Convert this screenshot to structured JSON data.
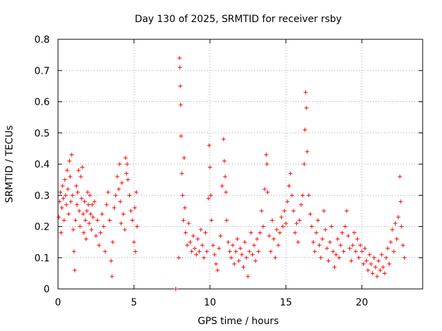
{
  "chart_data": {
    "type": "scatter",
    "title": "Day 130 of 2025, SRMTID for receiver rsby",
    "xlabel": "GPS time / hours",
    "ylabel": "SRMTID / TECUs",
    "xlim": [
      0,
      24
    ],
    "ylim": [
      0,
      0.8
    ],
    "xticks": [
      0,
      5,
      10,
      15,
      20
    ],
    "xtick_labels": [
      "0",
      "5",
      "10",
      "15",
      "20"
    ],
    "yticks": [
      0,
      0.1,
      0.2,
      0.3,
      0.4,
      0.5,
      0.6,
      0.7,
      0.8
    ],
    "ytick_labels": [
      "0",
      "0.1",
      "0.2",
      "0.3",
      "0.4",
      "0.5",
      "0.6",
      "0.7",
      "0.8"
    ],
    "grid": true,
    "marker": "+",
    "color": "#ff0000",
    "series": [
      {
        "name": "SRMTID",
        "points": [
          [
            0.05,
            0.23
          ],
          [
            0.1,
            0.28
          ],
          [
            0.15,
            0.31
          ],
          [
            0.2,
            0.18
          ],
          [
            0.25,
            0.26
          ],
          [
            0.3,
            0.33
          ],
          [
            0.35,
            0.29
          ],
          [
            0.4,
            0.22
          ],
          [
            0.45,
            0.35
          ],
          [
            0.5,
            0.3
          ],
          [
            0.55,
            0.27
          ],
          [
            0.6,
            0.38
          ],
          [
            0.65,
            0.32
          ],
          [
            0.7,
            0.24
          ],
          [
            0.75,
            0.41
          ],
          [
            0.8,
            0.36
          ],
          [
            0.85,
            0.28
          ],
          [
            0.9,
            0.43
          ],
          [
            0.95,
            0.3
          ],
          [
            1.0,
            0.19
          ],
          [
            1.05,
            0.12
          ],
          [
            1.1,
            0.06
          ],
          [
            1.15,
            0.22
          ],
          [
            1.2,
            0.33
          ],
          [
            1.25,
            0.27
          ],
          [
            1.3,
            0.31
          ],
          [
            1.35,
            0.38
          ],
          [
            1.4,
            0.25
          ],
          [
            1.45,
            0.2
          ],
          [
            1.5,
            0.36
          ],
          [
            1.55,
            0.29
          ],
          [
            1.6,
            0.39
          ],
          [
            1.65,
            0.24
          ],
          [
            1.7,
            0.18
          ],
          [
            1.75,
            0.28
          ],
          [
            1.8,
            0.22
          ],
          [
            1.85,
            0.16
          ],
          [
            1.9,
            0.25
          ],
          [
            1.95,
            0.31
          ],
          [
            2.0,
            0.27
          ],
          [
            2.05,
            0.21
          ],
          [
            2.1,
            0.3
          ],
          [
            2.15,
            0.24
          ],
          [
            2.2,
            0.19
          ],
          [
            2.25,
            0.27
          ],
          [
            2.3,
            0.23
          ],
          [
            2.4,
            0.28
          ],
          [
            2.5,
            0.17
          ],
          [
            2.6,
            0.22
          ],
          [
            2.7,
            0.14
          ],
          [
            2.8,
            0.18
          ],
          [
            2.9,
            0.24
          ],
          [
            3.0,
            0.2
          ],
          [
            3.1,
            0.12
          ],
          [
            3.2,
            0.27
          ],
          [
            3.3,
            0.31
          ],
          [
            3.4,
            0.22
          ],
          [
            3.5,
            0.09
          ],
          [
            3.55,
            0.04
          ],
          [
            3.6,
            0.15
          ],
          [
            3.7,
            0.26
          ],
          [
            3.8,
            0.3
          ],
          [
            3.9,
            0.36
          ],
          [
            4.0,
            0.32
          ],
          [
            4.05,
            0.4
          ],
          [
            4.1,
            0.28
          ],
          [
            4.15,
            0.21
          ],
          [
            4.2,
            0.34
          ],
          [
            4.3,
            0.24
          ],
          [
            4.4,
            0.19
          ],
          [
            4.45,
            0.42
          ],
          [
            4.5,
            0.37
          ],
          [
            4.55,
            0.4
          ],
          [
            4.6,
            0.35
          ],
          [
            4.7,
            0.3
          ],
          [
            4.8,
            0.25
          ],
          [
            4.9,
            0.22
          ],
          [
            5.0,
            0.15
          ],
          [
            5.05,
            0.26
          ],
          [
            5.1,
            0.12
          ],
          [
            5.15,
            0.31
          ],
          [
            5.2,
            0.2
          ],
          [
            7.75,
            0.0
          ],
          [
            7.95,
            0.1
          ],
          [
            8.0,
            0.74
          ],
          [
            8.02,
            0.71
          ],
          [
            8.05,
            0.65
          ],
          [
            8.08,
            0.59
          ],
          [
            8.1,
            0.49
          ],
          [
            8.15,
            0.37
          ],
          [
            8.2,
            0.3
          ],
          [
            8.25,
            0.22
          ],
          [
            8.3,
            0.42
          ],
          [
            8.35,
            0.26
          ],
          [
            8.4,
            0.18
          ],
          [
            8.5,
            0.14
          ],
          [
            8.6,
            0.21
          ],
          [
            8.7,
            0.15
          ],
          [
            8.8,
            0.12
          ],
          [
            8.9,
            0.17
          ],
          [
            9.0,
            0.13
          ],
          [
            9.1,
            0.11
          ],
          [
            9.2,
            0.16
          ],
          [
            9.3,
            0.12
          ],
          [
            9.4,
            0.19
          ],
          [
            9.5,
            0.14
          ],
          [
            9.6,
            0.1
          ],
          [
            9.7,
            0.18
          ],
          [
            9.8,
            0.12
          ],
          [
            9.9,
            0.29
          ],
          [
            9.95,
            0.46
          ],
          [
            10.0,
            0.39
          ],
          [
            10.05,
            0.3
          ],
          [
            10.1,
            0.22
          ],
          [
            10.2,
            0.14
          ],
          [
            10.3,
            0.11
          ],
          [
            10.4,
            0.08
          ],
          [
            10.5,
            0.06
          ],
          [
            10.6,
            0.13
          ],
          [
            10.7,
            0.17
          ],
          [
            10.8,
            0.33
          ],
          [
            10.9,
            0.48
          ],
          [
            10.95,
            0.41
          ],
          [
            11.0,
            0.36
          ],
          [
            11.05,
            0.31
          ],
          [
            11.1,
            0.22
          ],
          [
            11.2,
            0.15
          ],
          [
            11.3,
            0.12
          ],
          [
            11.4,
            0.1
          ],
          [
            11.5,
            0.14
          ],
          [
            11.6,
            0.08
          ],
          [
            11.7,
            0.12
          ],
          [
            11.8,
            0.16
          ],
          [
            11.9,
            0.09
          ],
          [
            12.0,
            0.13
          ],
          [
            12.1,
            0.11
          ],
          [
            12.2,
            0.07
          ],
          [
            12.3,
            0.15
          ],
          [
            12.4,
            0.1
          ],
          [
            12.5,
            0.04
          ],
          [
            12.6,
            0.12
          ],
          [
            12.7,
            0.18
          ],
          [
            12.8,
            0.11
          ],
          [
            12.9,
            0.14
          ],
          [
            13.0,
            0.09
          ],
          [
            13.1,
            0.16
          ],
          [
            13.2,
            0.12
          ],
          [
            13.3,
            0.18
          ],
          [
            13.4,
            0.25
          ],
          [
            13.5,
            0.2
          ],
          [
            13.6,
            0.32
          ],
          [
            13.7,
            0.43
          ],
          [
            13.75,
            0.4
          ],
          [
            13.8,
            0.31
          ],
          [
            13.9,
            0.17
          ],
          [
            14.0,
            0.12
          ],
          [
            14.1,
            0.22
          ],
          [
            14.2,
            0.16
          ],
          [
            14.3,
            0.1
          ],
          [
            14.4,
            0.19
          ],
          [
            14.5,
            0.14
          ],
          [
            14.6,
            0.18
          ],
          [
            14.7,
            0.23
          ],
          [
            14.8,
            0.2
          ],
          [
            14.9,
            0.25
          ],
          [
            15.0,
            0.21
          ],
          [
            15.1,
            0.28
          ],
          [
            15.2,
            0.33
          ],
          [
            15.3,
            0.37
          ],
          [
            15.4,
            0.3
          ],
          [
            15.5,
            0.25
          ],
          [
            15.6,
            0.18
          ],
          [
            15.7,
            0.21
          ],
          [
            15.8,
            0.15
          ],
          [
            15.9,
            0.22
          ],
          [
            16.0,
            0.27
          ],
          [
            16.1,
            0.3
          ],
          [
            16.2,
            0.4
          ],
          [
            16.25,
            0.51
          ],
          [
            16.3,
            0.63
          ],
          [
            16.35,
            0.58
          ],
          [
            16.4,
            0.44
          ],
          [
            16.5,
            0.3
          ],
          [
            16.6,
            0.24
          ],
          [
            16.7,
            0.2
          ],
          [
            16.8,
            0.15
          ],
          [
            16.9,
            0.12
          ],
          [
            17.0,
            0.18
          ],
          [
            17.1,
            0.22
          ],
          [
            17.2,
            0.14
          ],
          [
            17.3,
            0.1
          ],
          [
            17.4,
            0.16
          ],
          [
            17.5,
            0.25
          ],
          [
            17.6,
            0.19
          ],
          [
            17.7,
            0.13
          ],
          [
            17.8,
            0.09
          ],
          [
            17.9,
            0.15
          ],
          [
            18.0,
            0.2
          ],
          [
            18.1,
            0.12
          ],
          [
            18.2,
            0.07
          ],
          [
            18.3,
            0.11
          ],
          [
            18.4,
            0.16
          ],
          [
            18.5,
            0.1
          ],
          [
            18.6,
            0.14
          ],
          [
            18.7,
            0.18
          ],
          [
            18.8,
            0.12
          ],
          [
            18.9,
            0.2
          ],
          [
            19.0,
            0.25
          ],
          [
            19.1,
            0.17
          ],
          [
            19.2,
            0.13
          ],
          [
            19.3,
            0.09
          ],
          [
            19.4,
            0.14
          ],
          [
            19.5,
            0.18
          ],
          [
            19.6,
            0.12
          ],
          [
            19.7,
            0.16
          ],
          [
            19.8,
            0.1
          ],
          [
            19.9,
            0.14
          ],
          [
            20.0,
            0.12
          ],
          [
            20.1,
            0.08
          ],
          [
            20.2,
            0.13
          ],
          [
            20.3,
            0.09
          ],
          [
            20.4,
            0.06
          ],
          [
            20.5,
            0.11
          ],
          [
            20.6,
            0.08
          ],
          [
            20.7,
            0.05
          ],
          [
            20.8,
            0.1
          ],
          [
            20.9,
            0.07
          ],
          [
            21.0,
            0.04
          ],
          [
            21.1,
            0.09
          ],
          [
            21.2,
            0.06
          ],
          [
            21.3,
            0.11
          ],
          [
            21.4,
            0.07
          ],
          [
            21.5,
            0.05
          ],
          [
            21.6,
            0.1
          ],
          [
            21.7,
            0.13
          ],
          [
            21.8,
            0.08
          ],
          [
            21.9,
            0.15
          ],
          [
            22.0,
            0.19
          ],
          [
            22.1,
            0.12
          ],
          [
            22.2,
            0.21
          ],
          [
            22.3,
            0.16
          ],
          [
            22.4,
            0.23
          ],
          [
            22.5,
            0.36
          ],
          [
            22.55,
            0.28
          ],
          [
            22.6,
            0.2
          ],
          [
            22.7,
            0.14
          ],
          [
            22.8,
            0.1
          ]
        ]
      }
    ]
  }
}
